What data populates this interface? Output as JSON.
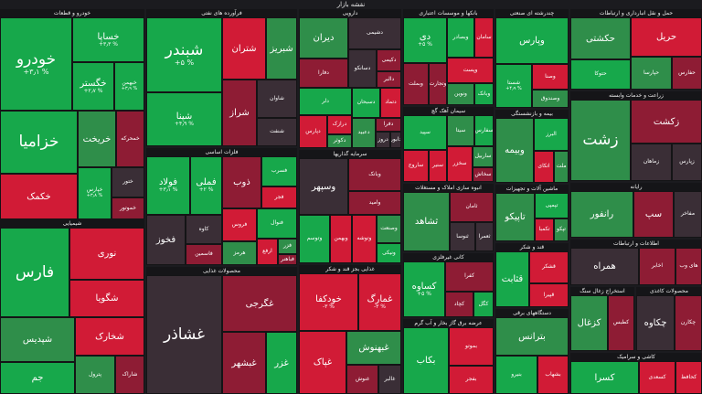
{
  "page_title": "نقشه بازار",
  "colors": {
    "strong_up": "#17a84b",
    "up": "#2f8e4a",
    "neutral": "#3a2e36",
    "down": "#8e1c34",
    "strong_down": "#d11b36"
  },
  "chart_data": {
    "type": "treemap",
    "sectors": [
      {
        "name": "خودرو و قطعات",
        "stocks": [
          {
            "name": "خودرو",
            "change": "+۳٫۱ %"
          },
          {
            "name": "خساپا",
            "change": "+۳٫۳ %"
          },
          {
            "name": "خگستر",
            "change": "+۲٫۷ %"
          },
          {
            "name": "خبهمن",
            "change": "+۳٫۹ %"
          },
          {
            "name": "خزامیا",
            "change": ""
          },
          {
            "name": "خکمک",
            "change": ""
          },
          {
            "name": "خریخت",
            "change": ""
          },
          {
            "name": "خمحرکه",
            "change": ""
          },
          {
            "name": "خپارس",
            "change": "+۳٫۸ %"
          },
          {
            "name": "ختور",
            "change": ""
          },
          {
            "name": "خموتور",
            "change": ""
          }
        ]
      },
      {
        "name": "فرآورده های نفتی",
        "stocks": [
          {
            "name": "شبندر",
            "change": "+۵ %"
          },
          {
            "name": "شپنا",
            "change": "+۴٫۹ %"
          },
          {
            "name": "شتران",
            "change": ""
          },
          {
            "name": "شبریز",
            "change": ""
          },
          {
            "name": "شراز",
            "change": ""
          },
          {
            "name": "شاوان",
            "change": ""
          },
          {
            "name": "شنفت",
            "change": ""
          }
        ]
      },
      {
        "name": "دارویی",
        "stocks": [
          {
            "name": "دیران",
            "change": ""
          },
          {
            "name": "دفارا",
            "change": ""
          },
          {
            "name": "دشیمی",
            "change": ""
          },
          {
            "name": "دسانکو",
            "change": ""
          },
          {
            "name": "دکیمی",
            "change": ""
          },
          {
            "name": "دالبر",
            "change": ""
          },
          {
            "name": "دلر",
            "change": ""
          },
          {
            "name": "دپارس",
            "change": ""
          },
          {
            "name": "درازک",
            "change": ""
          },
          {
            "name": "دکوثر",
            "change": ""
          },
          {
            "name": "دسبحان",
            "change": ""
          },
          {
            "name": "دتماد",
            "change": ""
          },
          {
            "name": "دعبید",
            "change": ""
          },
          {
            "name": "دفرا",
            "change": ""
          },
          {
            "name": "دروز",
            "change": ""
          },
          {
            "name": "دابور",
            "change": ""
          }
        ]
      },
      {
        "name": "بانکها و موسسات اعتباری",
        "stocks": [
          {
            "name": "دی",
            "change": "+۵ %"
          },
          {
            "name": "وبملت",
            "change": ""
          },
          {
            "name": "وتجارت",
            "change": ""
          },
          {
            "name": "وبصادر",
            "change": ""
          },
          {
            "name": "سامان",
            "change": ""
          },
          {
            "name": "وپست",
            "change": ""
          },
          {
            "name": "ونوین",
            "change": ""
          },
          {
            "name": "وبانک",
            "change": ""
          }
        ]
      },
      {
        "name": "چندرشته ای صنعتی",
        "stocks": [
          {
            "name": "وپارس",
            "change": ""
          },
          {
            "name": "شستا",
            "change": "+۴٫۹ %"
          },
          {
            "name": "وصنا",
            "change": ""
          },
          {
            "name": "وصندوق",
            "change": ""
          }
        ]
      },
      {
        "name": "حمل و نقل انبارداری و ارتباطات",
        "stocks": [
          {
            "name": "حکشتی",
            "change": ""
          },
          {
            "name": "حتوکا",
            "change": ""
          },
          {
            "name": "حریل",
            "change": ""
          },
          {
            "name": "حپارسا",
            "change": ""
          },
          {
            "name": "حفارس",
            "change": ""
          }
        ]
      },
      {
        "name": "فلزات اساسی",
        "stocks": [
          {
            "name": "فولاد",
            "change": "+۳٫۱ %"
          },
          {
            "name": "فملی",
            "change": "+۲ %"
          },
          {
            "name": "فخوز",
            "change": ""
          },
          {
            "name": "کاوه",
            "change": ""
          },
          {
            "name": "فاسمین",
            "change": ""
          },
          {
            "name": "ذوب",
            "change": ""
          },
          {
            "name": "فسرب",
            "change": ""
          },
          {
            "name": "فجر",
            "change": ""
          },
          {
            "name": "فروس",
            "change": ""
          },
          {
            "name": "هرمز",
            "change": ""
          },
          {
            "name": "فنوال",
            "change": ""
          },
          {
            "name": "ارفع",
            "change": ""
          },
          {
            "name": "فزر",
            "change": ""
          },
          {
            "name": "فباهنر",
            "change": ""
          }
        ]
      },
      {
        "name": "سرمایه گذاریها",
        "stocks": [
          {
            "name": "وسپهر",
            "change": ""
          },
          {
            "name": "وبانک",
            "change": ""
          },
          {
            "name": "وامید",
            "change": ""
          },
          {
            "name": "وتوسم",
            "change": ""
          },
          {
            "name": "وبهمن",
            "change": ""
          },
          {
            "name": "وتوشه",
            "change": ""
          },
          {
            "name": "وصنعت",
            "change": ""
          },
          {
            "name": "ونیکی",
            "change": ""
          }
        ]
      },
      {
        "name": "سیمان آهک گچ",
        "stocks": [
          {
            "name": "سپید",
            "change": ""
          },
          {
            "name": "ساروج",
            "change": ""
          },
          {
            "name": "سنیر",
            "change": ""
          },
          {
            "name": "سیتا",
            "change": ""
          },
          {
            "name": "سفارس",
            "change": ""
          },
          {
            "name": "سخزر",
            "change": ""
          },
          {
            "name": "ساربیل",
            "change": ""
          },
          {
            "name": "سخاش",
            "change": ""
          }
        ]
      },
      {
        "name": "بیمه و بازنشستگی",
        "stocks": [
          {
            "name": "وبیمه",
            "change": ""
          },
          {
            "name": "البرز",
            "change": ""
          },
          {
            "name": "اتکای",
            "change": ""
          },
          {
            "name": "ملت",
            "change": ""
          }
        ]
      },
      {
        "name": "زراعت و خدمات وابسته",
        "stocks": [
          {
            "name": "زشت",
            "change": ""
          },
          {
            "name": "زکشت",
            "change": ""
          },
          {
            "name": "زماهان",
            "change": ""
          },
          {
            "name": "زپارس",
            "change": ""
          }
        ]
      },
      {
        "name": "محصولات غذایی",
        "stocks": [
          {
            "name": "غشاذر",
            "change": ""
          },
          {
            "name": "غگرجی",
            "change": ""
          },
          {
            "name": "غبشهر",
            "change": ""
          },
          {
            "name": "غزر",
            "change": ""
          }
        ]
      },
      {
        "name": "شیمیایی",
        "stocks": [
          {
            "name": "فارس",
            "change": ""
          },
          {
            "name": "نوری",
            "change": ""
          },
          {
            "name": "شگویا",
            "change": ""
          },
          {
            "name": "شپدیس",
            "change": ""
          },
          {
            "name": "جم",
            "change": ""
          },
          {
            "name": "شخارک",
            "change": ""
          },
          {
            "name": "پترول",
            "change": ""
          },
          {
            "name": "شاراک",
            "change": ""
          }
        ]
      },
      {
        "name": "غذایی بجز قند و شکر",
        "stocks": [
          {
            "name": "خودکفا",
            "change": "-۳ %"
          },
          {
            "name": "غمارگ",
            "change": "-۳ %"
          },
          {
            "name": "غپاک",
            "change": ""
          },
          {
            "name": "غبهنوش",
            "change": ""
          },
          {
            "name": "غنوش",
            "change": ""
          },
          {
            "name": "غالبر",
            "change": ""
          }
        ]
      },
      {
        "name": "انبوه سازی املاک و مستغلات",
        "stocks": [
          {
            "name": "ثشاهد",
            "change": ""
          },
          {
            "name": "ثامان",
            "change": ""
          },
          {
            "name": "ثنوسا",
            "change": ""
          },
          {
            "name": "ثعمرا",
            "change": ""
          }
        ]
      },
      {
        "name": "کانی غیرفلزی",
        "stocks": [
          {
            "name": "کساوه",
            "change": "+۵ %"
          },
          {
            "name": "کفرا",
            "change": ""
          },
          {
            "name": "کچاد",
            "change": ""
          },
          {
            "name": "کگل",
            "change": ""
          }
        ]
      },
      {
        "name": "عرضه برق گاز بخار و آب گرم",
        "stocks": [
          {
            "name": "بکاب",
            "change": ""
          },
          {
            "name": "بموتو",
            "change": ""
          },
          {
            "name": "بفجر",
            "change": ""
          }
        ]
      },
      {
        "name": "ماشین آلات و تجهیزات",
        "stocks": [
          {
            "name": "تاپیکو",
            "change": ""
          },
          {
            "name": "تپمپی",
            "change": ""
          },
          {
            "name": "تکمبا",
            "change": ""
          },
          {
            "name": "تپکو",
            "change": ""
          }
        ]
      },
      {
        "name": "رایانه",
        "stocks": [
          {
            "name": "رانفور",
            "change": ""
          },
          {
            "name": "سپ",
            "change": ""
          },
          {
            "name": "مفاخر",
            "change": ""
          }
        ]
      },
      {
        "name": "اطلاعات و ارتباطات",
        "stocks": [
          {
            "name": "همراه",
            "change": ""
          },
          {
            "name": "اخابر",
            "change": ""
          },
          {
            "name": "های وب",
            "change": ""
          }
        ]
      },
      {
        "name": "قند و شکر",
        "stocks": [
          {
            "name": "قثابت",
            "change": ""
          },
          {
            "name": "قشکر",
            "change": ""
          },
          {
            "name": "قپیرا",
            "change": ""
          }
        ]
      },
      {
        "name": "دستگاههای برقی",
        "stocks": [
          {
            "name": "بترانس",
            "change": ""
          },
          {
            "name": "بنیرو",
            "change": ""
          },
          {
            "name": "بشهاب",
            "change": ""
          }
        ]
      },
      {
        "name": "استخراج زغال سنگ",
        "stocks": [
          {
            "name": "کزغال",
            "change": ""
          },
          {
            "name": "کطبس",
            "change": ""
          }
        ]
      },
      {
        "name": "محصولات کاغذی",
        "stocks": [
          {
            "name": "چکاوه",
            "change": ""
          },
          {
            "name": "چکارن",
            "change": ""
          }
        ]
      },
      {
        "name": "کاشی و سرامیک",
        "stocks": [
          {
            "name": "کسرا",
            "change": ""
          },
          {
            "name": "کسعدی",
            "change": ""
          },
          {
            "name": "کحافظ",
            "change": ""
          }
        ]
      }
    ]
  }
}
